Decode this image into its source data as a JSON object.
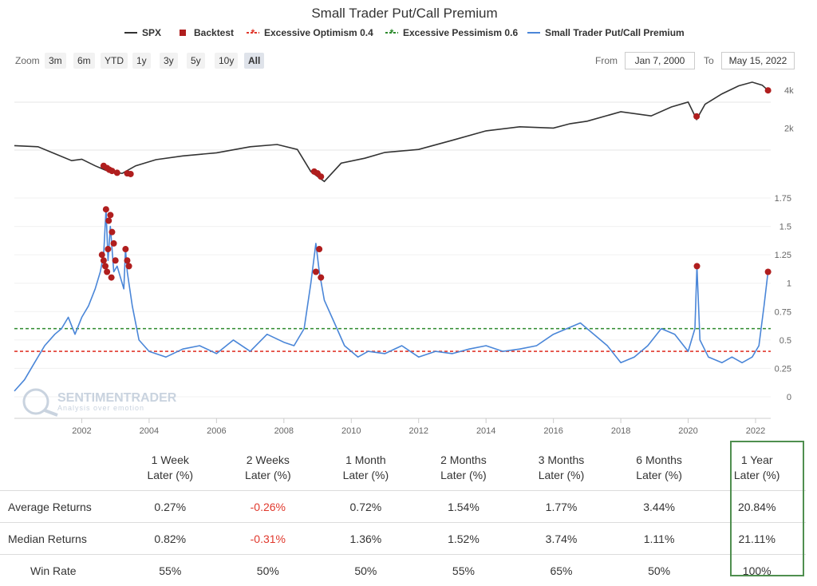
{
  "title": "Small Trader Put/Call Premium",
  "legend": [
    {
      "label": "SPX",
      "color": "#333333",
      "symbol": "line"
    },
    {
      "label": "Backtest",
      "color": "#b01e1e",
      "symbol": "square"
    },
    {
      "label": "Excessive Optimism 0.4",
      "color": "#e0382c",
      "symbol": "dashed"
    },
    {
      "label": "Excessive Pessimism 0.6",
      "color": "#2e8b2e",
      "symbol": "dashed"
    },
    {
      "label": "Small Trader Put/Call Premium",
      "color": "#4a86d8",
      "symbol": "line"
    }
  ],
  "zoom": {
    "label": "Zoom",
    "buttons": [
      "3m",
      "6m",
      "YTD",
      "1y",
      "3y",
      "5y",
      "10y",
      "All"
    ],
    "active": "All"
  },
  "range": {
    "from_label": "From",
    "from_value": "Jan 7, 2000",
    "to_label": "To",
    "to_value": "May 15, 2022"
  },
  "watermark": {
    "name": "SENTIMENTRADER",
    "tagline": "Analysis over emotion"
  },
  "colors": {
    "spx": "#333333",
    "premium": "#4a86d8",
    "backtest": "#b01e1e",
    "optimism": "#e0382c",
    "pessimism": "#2e8b2e"
  },
  "chart_data": [
    {
      "type": "line",
      "name": "SPX",
      "ylabels": [
        "4k",
        "2k"
      ],
      "y_scale": "log",
      "x": [
        2000.0,
        2000.7,
        2001.2,
        2001.7,
        2002.0,
        2002.4,
        2002.8,
        2003.2,
        2003.6,
        2004.2,
        2005.0,
        2006.0,
        2007.0,
        2007.8,
        2008.4,
        2008.8,
        2009.2,
        2009.7,
        2010.4,
        2011.0,
        2012.0,
        2013.0,
        2014.0,
        2015.0,
        2016.0,
        2016.5,
        2017.0,
        2018.0,
        2018.9,
        2019.5,
        2020.0,
        2020.25,
        2020.5,
        2021.0,
        2021.5,
        2021.9,
        2022.2,
        2022.37
      ],
      "y": [
        1450,
        1420,
        1250,
        1100,
        1130,
        1000,
        900,
        870,
        1000,
        1120,
        1200,
        1270,
        1420,
        1480,
        1350,
        900,
        750,
        1050,
        1150,
        1280,
        1350,
        1600,
        1900,
        2050,
        2000,
        2170,
        2270,
        2700,
        2500,
        2950,
        3230,
        2350,
        3100,
        3750,
        4350,
        4650,
        4400,
        4000
      ],
      "backtest_points": [
        [
          2002.65,
          1000
        ],
        [
          2002.75,
          960
        ],
        [
          2002.82,
          930
        ],
        [
          2002.9,
          910
        ],
        [
          2003.05,
          880
        ],
        [
          2003.35,
          870
        ],
        [
          2003.45,
          860
        ],
        [
          2008.9,
          900
        ],
        [
          2009.0,
          870
        ],
        [
          2009.1,
          820
        ],
        [
          2020.25,
          2480
        ],
        [
          2022.37,
          4000
        ]
      ]
    },
    {
      "type": "line",
      "name": "Small Trader Put/Call Premium",
      "ylim": [
        0,
        1.75
      ],
      "yticks": [
        "0",
        "0.25",
        "0.5",
        "0.75",
        "1",
        "1.25",
        "1.5",
        "1.75"
      ],
      "xticks": [
        "2002",
        "2004",
        "2006",
        "2008",
        "2010",
        "2012",
        "2014",
        "2016",
        "2018",
        "2020",
        "2022"
      ],
      "x": [
        2000.0,
        2000.3,
        2000.6,
        2000.9,
        2001.2,
        2001.4,
        2001.6,
        2001.8,
        2002.0,
        2002.2,
        2002.4,
        2002.55,
        2002.65,
        2002.72,
        2002.78,
        2002.85,
        2002.95,
        2003.05,
        2003.15,
        2003.25,
        2003.3,
        2003.35,
        2003.5,
        2003.7,
        2004.0,
        2004.5,
        2005.0,
        2005.5,
        2006.0,
        2006.5,
        2007.0,
        2007.5,
        2008.0,
        2008.3,
        2008.6,
        2008.8,
        2008.95,
        2009.05,
        2009.2,
        2009.5,
        2009.8,
        2010.2,
        2010.5,
        2011.0,
        2011.5,
        2012.0,
        2012.5,
        2013.0,
        2013.5,
        2014.0,
        2014.5,
        2015.0,
        2015.5,
        2016.0,
        2016.4,
        2016.8,
        2017.2,
        2017.6,
        2018.0,
        2018.4,
        2018.8,
        2019.2,
        2019.6,
        2020.0,
        2020.2,
        2020.26,
        2020.35,
        2020.6,
        2021.0,
        2021.3,
        2021.6,
        2021.9,
        2022.1,
        2022.25,
        2022.37
      ],
      "y": [
        0.05,
        0.15,
        0.3,
        0.45,
        0.55,
        0.6,
        0.7,
        0.55,
        0.7,
        0.8,
        0.95,
        1.1,
        1.25,
        1.65,
        1.2,
        1.5,
        1.1,
        1.15,
        1.05,
        0.95,
        1.3,
        1.1,
        0.8,
        0.5,
        0.4,
        0.35,
        0.42,
        0.45,
        0.38,
        0.5,
        0.4,
        0.55,
        0.48,
        0.45,
        0.6,
        1.0,
        1.35,
        1.1,
        0.85,
        0.65,
        0.45,
        0.35,
        0.4,
        0.38,
        0.45,
        0.35,
        0.4,
        0.38,
        0.42,
        0.45,
        0.4,
        0.42,
        0.45,
        0.55,
        0.6,
        0.65,
        0.55,
        0.45,
        0.3,
        0.35,
        0.45,
        0.6,
        0.55,
        0.4,
        0.6,
        1.15,
        0.5,
        0.35,
        0.3,
        0.35,
        0.3,
        0.35,
        0.45,
        0.8,
        1.1
      ],
      "backtest_points": [
        [
          2002.6,
          1.25
        ],
        [
          2002.65,
          1.2
        ],
        [
          2002.7,
          1.15
        ],
        [
          2002.75,
          1.1
        ],
        [
          2002.72,
          1.65
        ],
        [
          2002.8,
          1.55
        ],
        [
          2002.85,
          1.6
        ],
        [
          2002.9,
          1.45
        ],
        [
          2002.95,
          1.35
        ],
        [
          2003.0,
          1.2
        ],
        [
          2002.78,
          1.3
        ],
        [
          2002.88,
          1.05
        ],
        [
          2003.3,
          1.3
        ],
        [
          2003.35,
          1.2
        ],
        [
          2003.4,
          1.15
        ],
        [
          2008.95,
          1.1
        ],
        [
          2009.05,
          1.3
        ],
        [
          2009.1,
          1.05
        ],
        [
          2020.26,
          1.15
        ],
        [
          2022.37,
          1.1
        ]
      ],
      "optimism_threshold": 0.4,
      "pessimism_threshold": 0.6
    }
  ],
  "table": {
    "headers": [
      "",
      "1 Week|Later (%)",
      "2 Weeks|Later (%)",
      "1 Month|Later (%)",
      "2 Months|Later (%)",
      "3 Months|Later (%)",
      "6 Months|Later (%)",
      "1 Year|Later (%)"
    ],
    "rows": [
      {
        "label": "Average Returns",
        "values": [
          "0.27%",
          "-0.26%",
          "0.72%",
          "1.54%",
          "1.77%",
          "3.44%",
          "20.84%"
        ]
      },
      {
        "label": "Median Returns",
        "values": [
          "0.82%",
          "-0.31%",
          "1.36%",
          "1.52%",
          "3.74%",
          "1.11%",
          "21.11%"
        ]
      },
      {
        "label": "Win Rate",
        "values": [
          "55%",
          "50%",
          "50%",
          "55%",
          "65%",
          "50%",
          "100%"
        ]
      }
    ]
  }
}
